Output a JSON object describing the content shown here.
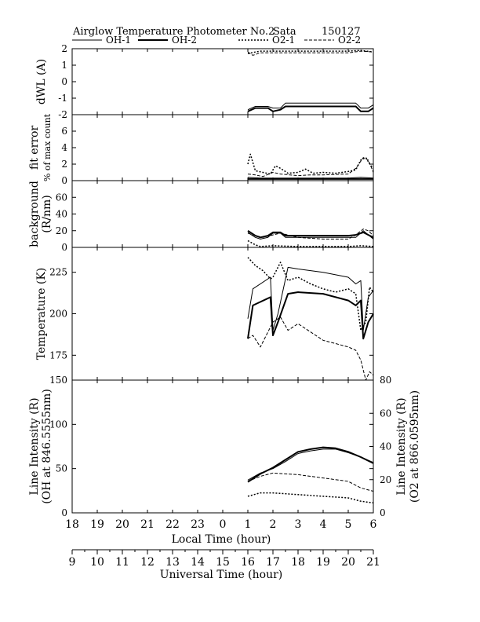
{
  "header": {
    "title": "Airglow Temperature Photometer No.2",
    "station": "Sata",
    "date": "150127"
  },
  "legend": [
    {
      "name": "OH-1",
      "style": "thin-solid"
    },
    {
      "name": "OH-2",
      "style": "thick-solid"
    },
    {
      "name": "O2-1",
      "style": "dotted"
    },
    {
      "name": "O2-2",
      "style": "dashed"
    }
  ],
  "axes": {
    "local_time": {
      "label": "Local Time (hour)",
      "ticks": [
        "18",
        "19",
        "20",
        "21",
        "22",
        "23",
        "0",
        "1",
        "2",
        "3",
        "4",
        "5",
        "6"
      ]
    },
    "universal_time": {
      "label": "Universal Time (hour)",
      "ticks": [
        "9",
        "10",
        "11",
        "12",
        "13",
        "14",
        "15",
        "16",
        "17",
        "18",
        "19",
        "20",
        "21"
      ]
    }
  },
  "chart_data": [
    {
      "type": "line",
      "panel": "dwl",
      "ylabel": "dWL (A)",
      "ylim": [
        -2,
        2
      ],
      "yticks": [
        "2",
        "1",
        "0",
        "-1",
        "-2"
      ],
      "x_units": "local time (hour, 24-30 = 0-6 next day)",
      "series": [
        {
          "name": "OH-1",
          "x": [
            25.0,
            25.3,
            25.5,
            25.8,
            26.0,
            26.3,
            26.5,
            27.0,
            28.0,
            29.0,
            29.3,
            29.5,
            29.8,
            30.0
          ],
          "y": [
            -1.7,
            -1.5,
            -1.5,
            -1.5,
            -1.6,
            -1.6,
            -1.3,
            -1.3,
            -1.3,
            -1.3,
            -1.3,
            -1.6,
            -1.6,
            -1.4
          ]
        },
        {
          "name": "OH-2",
          "x": [
            25.0,
            25.3,
            25.5,
            25.8,
            26.0,
            26.3,
            26.5,
            27.0,
            28.0,
            29.0,
            29.3,
            29.5,
            29.8,
            30.0
          ],
          "y": [
            -1.8,
            -1.6,
            -1.6,
            -1.6,
            -1.8,
            -1.7,
            -1.5,
            -1.5,
            -1.5,
            -1.5,
            -1.5,
            -1.8,
            -1.8,
            -1.6
          ]
        },
        {
          "name": "O2-1",
          "x": [
            25.0,
            25.3,
            25.5,
            26.0,
            27.0,
            28.0,
            29.0,
            29.5,
            30.0
          ],
          "y": [
            1.7,
            1.8,
            1.85,
            1.85,
            1.85,
            1.85,
            1.85,
            1.9,
            1.8
          ]
        },
        {
          "name": "O2-2",
          "x": [
            25.0,
            25.2,
            25.5,
            26.0,
            27.0,
            28.0,
            29.0,
            29.5,
            30.0
          ],
          "y": [
            1.8,
            1.6,
            1.75,
            1.75,
            1.75,
            1.75,
            1.75,
            1.85,
            1.8
          ]
        }
      ]
    },
    {
      "type": "line",
      "panel": "fit_error",
      "ylabel": "fit error",
      "ylabel2": "% of max count",
      "ylim": [
        0,
        8
      ],
      "yticks": [
        "6",
        "4",
        "2",
        "0"
      ],
      "series": [
        {
          "name": "OH-1",
          "x": [
            25.0,
            25.5,
            26.0,
            27.0,
            28.0,
            29.0,
            29.5,
            30.0
          ],
          "y": [
            0.4,
            0.3,
            0.3,
            0.3,
            0.3,
            0.3,
            0.4,
            0.3
          ]
        },
        {
          "name": "OH-2",
          "x": [
            25.0,
            25.5,
            26.0,
            27.0,
            28.0,
            29.0,
            29.5,
            30.0
          ],
          "y": [
            0.2,
            0.2,
            0.2,
            0.2,
            0.2,
            0.2,
            0.2,
            0.2
          ]
        },
        {
          "name": "O2-1",
          "x": [
            25.0,
            25.1,
            25.3,
            25.6,
            25.9,
            26.1,
            26.3,
            26.6,
            27.0,
            27.3,
            27.6,
            28.0,
            28.5,
            29.0,
            29.3,
            29.5,
            29.7,
            29.9,
            30.0
          ],
          "y": [
            2.0,
            3.2,
            1.2,
            1.0,
            0.8,
            1.8,
            1.5,
            0.9,
            1.0,
            1.4,
            0.9,
            1.0,
            0.9,
            1.1,
            1.3,
            2.5,
            2.8,
            1.8,
            1.6
          ]
        },
        {
          "name": "O2-2",
          "x": [
            25.0,
            25.3,
            25.6,
            26.0,
            26.3,
            27.0,
            27.5,
            28.0,
            29.0,
            29.3,
            29.6,
            29.8,
            30.0
          ],
          "y": [
            0.8,
            0.7,
            0.5,
            1.0,
            0.8,
            0.6,
            0.7,
            0.7,
            0.8,
            1.5,
            2.8,
            2.5,
            1.0
          ]
        }
      ]
    },
    {
      "type": "line",
      "panel": "background",
      "ylabel": "background",
      "ylabel2": "(R/nm)",
      "ylim": [
        0,
        80
      ],
      "yticks": [
        "60",
        "40",
        "20",
        "0"
      ],
      "series": [
        {
          "name": "OH-1",
          "x": [
            25.0,
            25.3,
            25.5,
            25.8,
            26.0,
            26.3,
            26.5,
            27.0,
            28.0,
            29.0,
            29.3,
            29.6,
            29.8,
            30.0
          ],
          "y": [
            18,
            12,
            10,
            12,
            17,
            17,
            12,
            12,
            12,
            12,
            12,
            20,
            15,
            10
          ]
        },
        {
          "name": "OH-2",
          "x": [
            25.0,
            25.3,
            25.5,
            25.8,
            26.0,
            26.3,
            26.5,
            27.0,
            28.0,
            29.0,
            29.3,
            29.6,
            29.8,
            30.0
          ],
          "y": [
            20,
            14,
            12,
            14,
            18,
            18,
            14,
            14,
            14,
            14,
            15,
            18,
            15,
            12
          ]
        },
        {
          "name": "O2-1",
          "x": [
            25.0,
            25.3,
            25.5,
            26.0,
            27.0,
            28.0,
            29.0,
            29.5,
            30.0
          ],
          "y": [
            8,
            3,
            1,
            2,
            1,
            1,
            1,
            2,
            1
          ]
        },
        {
          "name": "O2-2",
          "x": [
            25.0,
            25.3,
            25.6,
            26.0,
            26.3,
            27.0,
            28.0,
            29.0,
            29.3,
            29.6,
            29.8,
            30.0
          ],
          "y": [
            17,
            14,
            12,
            15,
            17,
            12,
            10,
            10,
            15,
            22,
            20,
            14
          ]
        }
      ]
    },
    {
      "type": "line",
      "panel": "temperature",
      "ylabel": "Temperature (K)",
      "ylim": [
        160,
        240
      ],
      "yticks": [
        "225",
        "200",
        "175"
      ],
      "series": [
        {
          "name": "OH-1",
          "x": [
            25.0,
            25.2,
            25.9,
            26.0,
            26.2,
            26.6,
            27.0,
            28.0,
            29.0,
            29.3,
            29.5,
            29.6,
            29.8,
            30.0
          ],
          "y": [
            197,
            215,
            222,
            190,
            200,
            228,
            227,
            225,
            222,
            218,
            220,
            190,
            210,
            214
          ]
        },
        {
          "name": "OH-2",
          "x": [
            25.0,
            25.2,
            25.9,
            26.0,
            26.2,
            26.6,
            27.0,
            28.0,
            29.0,
            29.3,
            29.5,
            29.6,
            29.8,
            30.0
          ],
          "y": [
            185,
            205,
            210,
            187,
            195,
            212,
            213,
            212,
            208,
            205,
            208,
            185,
            195,
            200
          ]
        },
        {
          "name": "O2-1",
          "x": [
            25.0,
            25.3,
            25.6,
            25.9,
            26.0,
            26.3,
            26.6,
            27.0,
            27.5,
            28.0,
            28.5,
            29.0,
            29.3,
            29.5,
            29.7,
            29.85,
            30.0
          ],
          "y": [
            234,
            229,
            226,
            221,
            222,
            231,
            220,
            222,
            218,
            215,
            213,
            215,
            212,
            190,
            195,
            216,
            213
          ]
        },
        {
          "name": "O2-2",
          "x": [
            25.0,
            25.2,
            25.5,
            26.0,
            26.3,
            26.6,
            27.0,
            27.5,
            28.0,
            28.5,
            29.0,
            29.3,
            29.5,
            29.7,
            29.85,
            30.0
          ],
          "y": [
            185,
            187,
            180,
            195,
            198,
            190,
            194,
            189,
            184,
            182,
            180,
            178,
            172,
            160,
            165,
            163
          ]
        }
      ]
    },
    {
      "type": "line",
      "panel": "intensity",
      "ylabel": "Line Intensity (R)",
      "ylabel2": "(OH at 846.5555nm)",
      "ylabel_right": "Line Intensity (R)",
      "ylabel_right2": "(O2 at 866.0595nm)",
      "ylim": [
        0,
        150
      ],
      "ylim_right": [
        0,
        80
      ],
      "yticks": [
        "150",
        "100",
        "50",
        "0"
      ],
      "yticks_right": [
        "80",
        "60",
        "40",
        "20",
        "0"
      ],
      "series": [
        {
          "name": "OH-1",
          "x": [
            25.0,
            25.5,
            26.0,
            26.5,
            27.0,
            27.5,
            28.0,
            28.5,
            29.0,
            29.5,
            30.0
          ],
          "y": [
            37,
            45,
            50,
            58,
            67,
            70,
            72,
            72,
            68,
            63,
            57
          ]
        },
        {
          "name": "OH-2",
          "x": [
            25.0,
            25.5,
            26.0,
            26.5,
            27.0,
            27.5,
            28.0,
            28.5,
            29.0,
            29.5,
            30.0
          ],
          "y": [
            35,
            44,
            51,
            60,
            69,
            72,
            74,
            73,
            69,
            63,
            56
          ]
        },
        {
          "name": "O2-1",
          "axis": "right",
          "x": [
            25.0,
            25.5,
            26.0,
            27.0,
            28.0,
            29.0,
            29.5,
            30.0
          ],
          "y": [
            10,
            12,
            12,
            11,
            10,
            9,
            7,
            6
          ]
        },
        {
          "name": "O2-2",
          "axis": "right",
          "x": [
            25.0,
            25.5,
            26.0,
            27.0,
            28.0,
            29.0,
            29.5,
            30.0
          ],
          "y": [
            19,
            22,
            24,
            23,
            21,
            19,
            15,
            13
          ]
        }
      ]
    }
  ]
}
